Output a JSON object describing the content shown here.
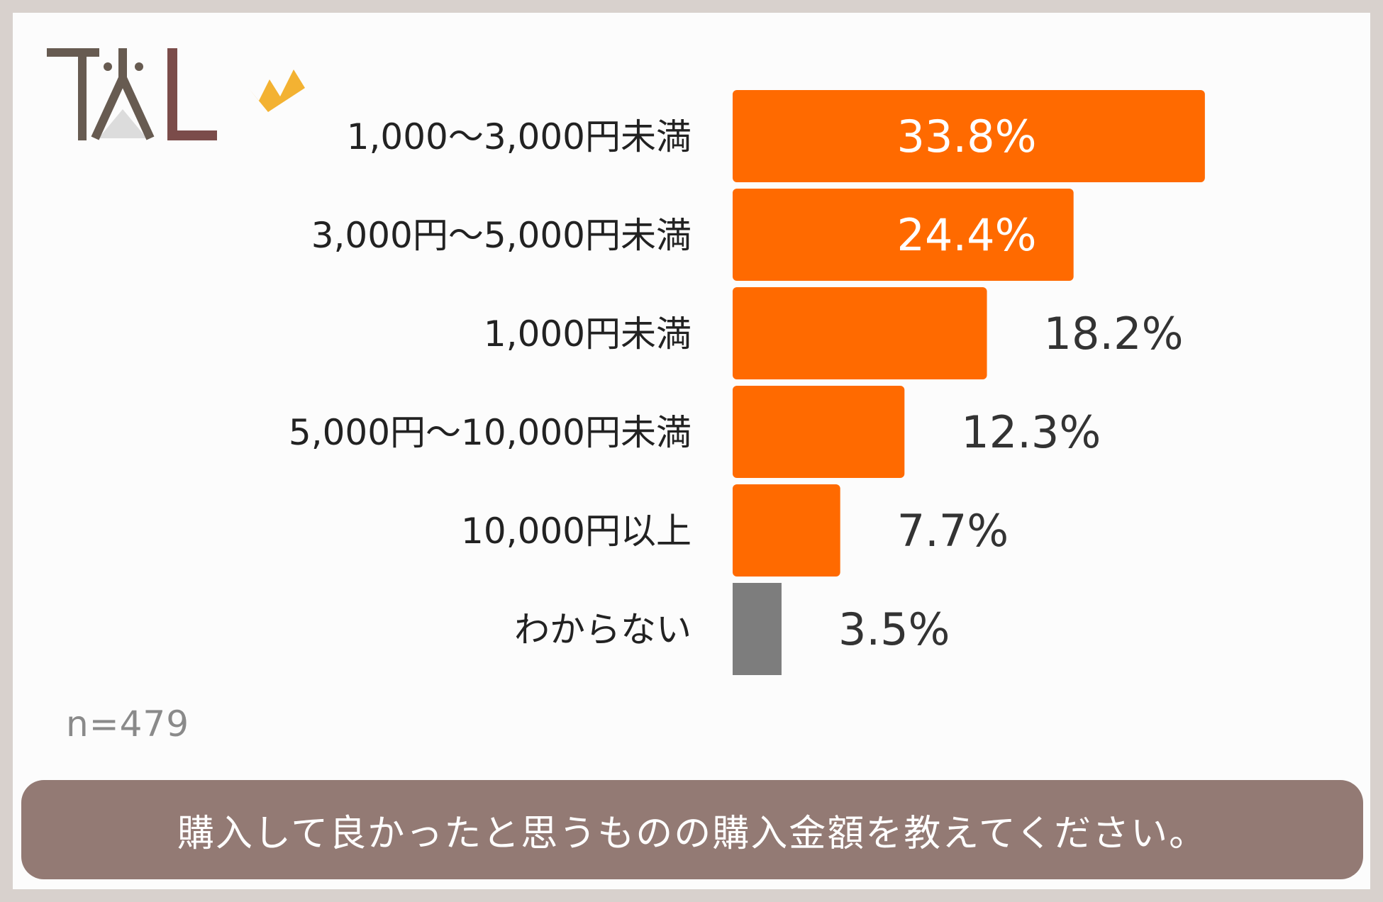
{
  "chart_data": {
    "type": "bar",
    "orientation": "horizontal",
    "categories": [
      "1,000～3,000円未満",
      "3,000円～5,000円未満",
      "1,000円未満",
      "5,000円～10,000円未満",
      "10,000円以上",
      "わからない"
    ],
    "values": [
      33.8,
      24.4,
      18.2,
      12.3,
      7.7,
      3.5
    ],
    "value_labels": [
      "33.8%",
      "24.4%",
      "18.2%",
      "12.3%",
      "7.7%",
      "3.5%"
    ],
    "bar_colors": [
      "#ff6a00",
      "#ff6a00",
      "#ff6a00",
      "#ff6a00",
      "#ff6a00",
      "#7d7d7d"
    ],
    "grid": false
  },
  "sample_size": "n=479",
  "question": "購入して良かったと思うものの購入金額を教えてください。",
  "colors": {
    "accent": "#ff6a00",
    "other": "#7d7d7d",
    "question_bg": "#937a74",
    "logo_dark": "#675b51",
    "logo_brown": "#7b4c4a",
    "crown": "#f3b232"
  },
  "logo": {
    "text": "TAL",
    "icon": "crown-icon"
  }
}
